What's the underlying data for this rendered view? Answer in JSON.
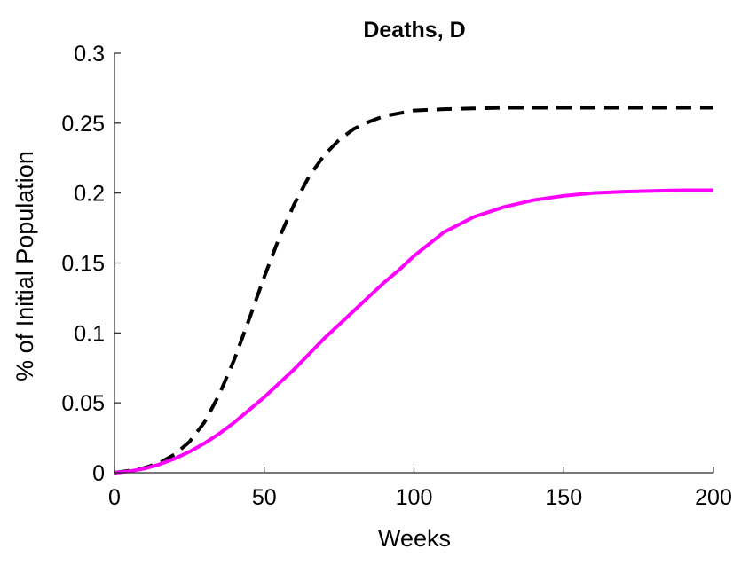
{
  "chart_data": {
    "type": "line",
    "title": "Deaths, D",
    "xlabel": "Weeks",
    "ylabel": "% of Initial Population",
    "xlim": [
      0,
      200
    ],
    "ylim": [
      0,
      0.3
    ],
    "x_ticks": [
      0,
      50,
      100,
      150,
      200
    ],
    "x_tick_labels": [
      "0",
      "50",
      "100",
      "150",
      "200"
    ],
    "y_ticks": [
      0,
      0.05,
      0.1,
      0.15,
      0.2,
      0.25,
      0.3
    ],
    "y_tick_labels": [
      "0",
      "0.05",
      "0.1",
      "0.15",
      "0.2",
      "0.25",
      "0.3"
    ],
    "grid": false,
    "box": "left-bottom",
    "x": [
      0,
      5,
      10,
      15,
      20,
      25,
      30,
      35,
      40,
      45,
      50,
      55,
      60,
      65,
      70,
      75,
      80,
      85,
      90,
      95,
      100,
      110,
      120,
      130,
      140,
      150,
      160,
      170,
      180,
      190,
      200
    ],
    "series": [
      {
        "color": "#000000",
        "dash": "dashed",
        "values": [
          0,
          0.0015,
          0.0035,
          0.007,
          0.013,
          0.022,
          0.036,
          0.056,
          0.081,
          0.11,
          0.14,
          0.168,
          0.192,
          0.212,
          0.227,
          0.238,
          0.246,
          0.251,
          0.255,
          0.257,
          0.259,
          0.26,
          0.2605,
          0.261,
          0.261,
          0.261,
          0.261,
          0.261,
          0.261,
          0.261,
          0.261
        ]
      },
      {
        "color": "#ff00ff",
        "dash": "solid",
        "values": [
          0,
          0.001,
          0.003,
          0.006,
          0.01,
          0.015,
          0.021,
          0.028,
          0.036,
          0.045,
          0.054,
          0.064,
          0.074,
          0.085,
          0.096,
          0.106,
          0.116,
          0.126,
          0.136,
          0.145,
          0.155,
          0.172,
          0.183,
          0.19,
          0.195,
          0.198,
          0.2,
          0.201,
          0.2015,
          0.202,
          0.202
        ]
      }
    ]
  }
}
